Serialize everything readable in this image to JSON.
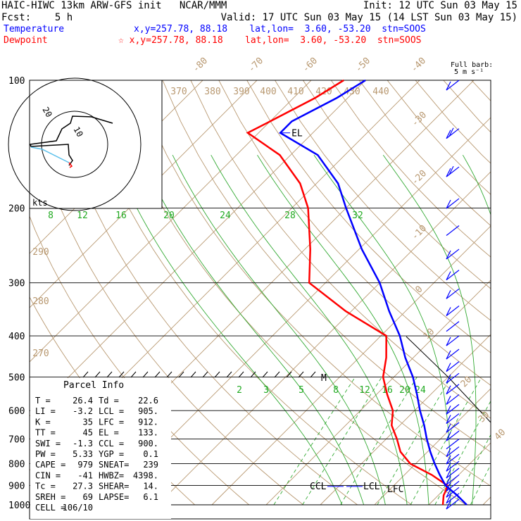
{
  "header": {
    "line1_left": "HAIC-HIWC 13km ARW-GFS init   NCAR/MMM",
    "line1_right": "Init: 12 UTC Sun 03 May 15",
    "line2_left": "Fcst:    5 h",
    "line2_right": "Valid: 17 UTC Sun 03 May 15 (14 LST Sun 03 May 15)",
    "temp_label": "Temperature",
    "temp_info": "x,y=257.78, 88.18    lat,lon=  3.60, -53.20  stn=SOOS",
    "dew_label": "Dewpoint",
    "dew_info": "☆ x,y=257.78, 88.18    lat,lon=  3.60, -53.20  stn=SOOS"
  },
  "colors": {
    "temperature": "#0000ff",
    "dewpoint": "#ff0000",
    "isotherm": "#b89870",
    "mixing_ratio": "#22aa22"
  },
  "barb_label": {
    "line1": "Full barb:",
    "line2": "5 m s⁻¹"
  },
  "hodograph": {
    "units": "kts",
    "ring_labels": [
      "20",
      "10"
    ]
  },
  "parcel_info": {
    "title": "Parcel Info",
    "rows": [
      [
        "T  =",
        "26.4",
        "Td =",
        "22.6"
      ],
      [
        "LI =",
        "-3.2",
        "LCL =",
        "905."
      ],
      [
        "K  =",
        "35",
        "LFC =",
        "912."
      ],
      [
        "TT =",
        "45",
        "EL =",
        "133."
      ],
      [
        "SWI =",
        "-1.3",
        "CCL =",
        "900."
      ],
      [
        "PW =",
        "5.33",
        "YGP =",
        "0.1"
      ],
      [
        "CAPE =",
        "979",
        "SNEAT=",
        "239"
      ],
      [
        "CIN =",
        "-41",
        "HWBZ=",
        "4398."
      ],
      [
        "Tc =",
        "27.3",
        "SHEAR=",
        "14."
      ],
      [
        "SREH =",
        "69",
        "LAPSE=",
        "6.1"
      ],
      [
        "CELL =",
        "106/10",
        "",
        ""
      ]
    ]
  },
  "level_labels": {
    "el": "EL",
    "ccl": "CCL",
    "lcl": "LCL",
    "lfc": "LFC",
    "m": "M"
  },
  "chart_data": {
    "type": "line",
    "title": "",
    "ylabel": "",
    "xlabel": "",
    "pressure_levels": [
      "100",
      "200",
      "300",
      "400",
      "500",
      "600",
      "700",
      "800",
      "900",
      "1000"
    ],
    "isotherm_labels": [
      "-80",
      "-70",
      "-60",
      "-50",
      "-40",
      "-30",
      "-20",
      "-10",
      "0",
      "10",
      "20",
      "30",
      "40"
    ],
    "theta_labels_top": [
      "370",
      "380",
      "390",
      "400",
      "410",
      "420",
      "430",
      "440"
    ],
    "theta_labels_left": [
      "290",
      "280",
      "270"
    ],
    "mixing_ratio_upper": [
      "8",
      "12",
      "16",
      "20",
      "24",
      "28",
      "32"
    ],
    "mixing_ratio_lower": [
      "2",
      "3",
      "5",
      "8",
      "12",
      "16",
      "20",
      "24"
    ],
    "series": [
      {
        "name": "Temperature",
        "pressure": [
          1000,
          950,
          925,
          900,
          850,
          800,
          750,
          700,
          650,
          600,
          550,
          500,
          450,
          400,
          350,
          300,
          250,
          200,
          175,
          150,
          133,
          125,
          110,
          100
        ],
        "temp_c": [
          27,
          23.5,
          21.5,
          19.5,
          16.5,
          13.5,
          10.5,
          7.5,
          4.5,
          1.0,
          -2.5,
          -6.5,
          -11.5,
          -16.5,
          -23,
          -30,
          -39.5,
          -50,
          -56,
          -65,
          -76,
          -76,
          -72,
          -70
        ]
      },
      {
        "name": "Dewpoint",
        "pressure": [
          1000,
          950,
          925,
          900,
          850,
          800,
          750,
          700,
          650,
          600,
          550,
          500,
          450,
          400,
          350,
          300,
          250,
          200,
          175,
          150,
          133,
          125,
          110,
          100
        ],
        "dewpoint_c": [
          22.6,
          21,
          20.5,
          19.8,
          15,
          9,
          5,
          2,
          -1.5,
          -4,
          -8,
          -12,
          -15,
          -19,
          -31,
          -43,
          -49,
          -57,
          -63,
          -72,
          -82,
          -80,
          -76,
          -74
        ]
      }
    ],
    "wind_barbs": {
      "pressure": [
        100,
        130,
        160,
        190,
        220,
        250,
        280,
        310,
        340,
        370,
        400,
        430,
        460,
        490,
        520,
        550,
        580,
        610,
        640,
        670,
        700,
        730,
        760,
        790,
        820,
        850,
        880,
        910,
        940,
        970
      ],
      "full_barbs": [
        1,
        2,
        2,
        1,
        0,
        1,
        1,
        1,
        1,
        0,
        1,
        1,
        1,
        1,
        1,
        1,
        1,
        1,
        1,
        1,
        0,
        1,
        1,
        1,
        1,
        1,
        1,
        1,
        1,
        1
      ]
    }
  }
}
